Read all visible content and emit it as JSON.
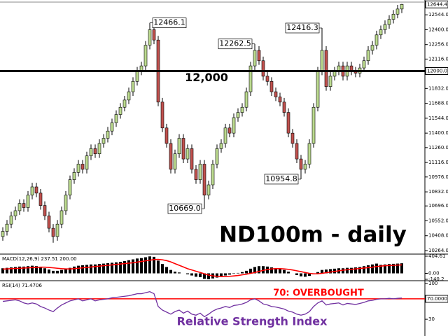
{
  "chart_data": [
    {
      "type": "candlestick",
      "title": "ND100m - daily",
      "up_color": "#bcdb8f",
      "down_color": "#c0504d",
      "open": [
        10400,
        10450,
        10520,
        10600,
        10650,
        10720,
        10680,
        10800,
        10880,
        10820,
        10700,
        10600,
        10480,
        10400,
        10520,
        10650,
        10800,
        10950,
        11020,
        11100,
        11050,
        11180,
        11250,
        11200,
        11300,
        11350,
        11420,
        11500,
        11580,
        11650,
        11720,
        11800,
        11900,
        12000,
        12050,
        12250,
        12400,
        12300,
        11700,
        11450,
        11300,
        11050,
        11200,
        11350,
        11150,
        11250,
        11050,
        10950,
        11100,
        10800,
        10900,
        11100,
        11250,
        11300,
        11450,
        11400,
        11550,
        11600,
        11650,
        11800,
        12050,
        12200,
        12100,
        11950,
        11900,
        11800,
        11750,
        11700,
        11600,
        11400,
        11300,
        11150,
        11050,
        11100,
        11300,
        11650,
        12000,
        12200,
        11850,
        11950,
        12000,
        12050,
        11950,
        12050,
        12000,
        11980,
        12030,
        12100,
        12200,
        12250,
        12350,
        12400,
        12450,
        12500,
        12550,
        12600
      ],
      "high": [
        10490,
        10560,
        10640,
        10690,
        10760,
        10760,
        10840,
        10920,
        10920,
        10860,
        10740,
        10640,
        10520,
        10560,
        10690,
        10840,
        10990,
        11060,
        11140,
        11140,
        11220,
        11290,
        11290,
        11340,
        11390,
        11460,
        11540,
        11620,
        11690,
        11760,
        11840,
        11940,
        12040,
        12090,
        12290,
        12466.1,
        12440,
        12340,
        11740,
        11490,
        11340,
        11240,
        11390,
        11390,
        11290,
        11290,
        11090,
        11140,
        11140,
        10940,
        11140,
        11290,
        11340,
        11490,
        11490,
        11590,
        11640,
        11690,
        11840,
        12090,
        12262.5,
        12240,
        12140,
        11990,
        11940,
        11840,
        11790,
        11740,
        11640,
        11440,
        11340,
        11190,
        11140,
        11340,
        11690,
        12040,
        12416.3,
        12240,
        11990,
        12040,
        12090,
        12090,
        12090,
        12090,
        12040,
        12070,
        12140,
        12240,
        12290,
        12390,
        12440,
        12490,
        12540,
        12590,
        12640,
        12650
      ],
      "low": [
        10360,
        10410,
        10480,
        10560,
        10610,
        10640,
        10640,
        10760,
        10780,
        10660,
        10560,
        10440,
        10340,
        10360,
        10480,
        10610,
        10760,
        10910,
        10980,
        11010,
        11010,
        11140,
        11160,
        11160,
        11260,
        11310,
        11380,
        11460,
        11540,
        11610,
        11680,
        11760,
        11860,
        11960,
        12010,
        12210,
        12260,
        11660,
        11410,
        11260,
        11010,
        11010,
        11160,
        11110,
        11110,
        11010,
        10910,
        10910,
        10669.0,
        10760,
        10860,
        11060,
        11210,
        11260,
        11360,
        11360,
        11510,
        11560,
        11610,
        11760,
        12010,
        12060,
        11910,
        11860,
        11760,
        11710,
        11660,
        11560,
        11360,
        11260,
        11110,
        10954.8,
        11010,
        11060,
        11260,
        11610,
        11960,
        11810,
        11810,
        11910,
        11960,
        11910,
        11910,
        11960,
        11940,
        11940,
        11990,
        12060,
        12160,
        12210,
        12310,
        12360,
        12410,
        12460,
        12510,
        12560
      ],
      "close": [
        10450,
        10520,
        10600,
        10650,
        10720,
        10680,
        10800,
        10880,
        10820,
        10700,
        10600,
        10480,
        10400,
        10520,
        10650,
        10800,
        10950,
        11020,
        11100,
        11050,
        11180,
        11250,
        11200,
        11300,
        11350,
        11420,
        11500,
        11580,
        11650,
        11720,
        11800,
        11900,
        12000,
        12050,
        12250,
        12400,
        12300,
        11700,
        11450,
        11300,
        11050,
        11200,
        11350,
        11150,
        11250,
        11050,
        10950,
        11100,
        10800,
        10900,
        11100,
        11250,
        11300,
        11450,
        11400,
        11550,
        11600,
        11650,
        11800,
        12050,
        12200,
        12100,
        11950,
        11900,
        11800,
        11750,
        11700,
        11600,
        11400,
        11300,
        11150,
        11050,
        11100,
        11300,
        11650,
        12000,
        12200,
        11850,
        11950,
        12000,
        12050,
        11950,
        12050,
        12000,
        11980,
        12030,
        12100,
        12200,
        12250,
        12350,
        12400,
        12450,
        12500,
        12550,
        12600,
        12644.4
      ],
      "ylim": [
        10237,
        12660
      ],
      "yticks": [
        {
          "value": 10264,
          "label": "10264.0"
        },
        {
          "value": 10408,
          "label": "10408.0"
        },
        {
          "value": 10552,
          "label": "10552.0"
        },
        {
          "value": 10696,
          "label": "10696.0"
        },
        {
          "value": 10832,
          "label": "10832.0"
        },
        {
          "value": 10976,
          "label": "10976.0"
        },
        {
          "value": 11116,
          "label": "11116.0"
        },
        {
          "value": 11260,
          "label": "11260.0"
        },
        {
          "value": 11400,
          "label": "11400.0"
        },
        {
          "value": 11544,
          "label": "11544.0"
        },
        {
          "value": 11688,
          "label": "11688.0"
        },
        {
          "value": 11832,
          "label": "11832.0"
        },
        {
          "value": 12116,
          "label": "12116.0"
        },
        {
          "value": 12256,
          "label": "12256.0"
        },
        {
          "value": 12400,
          "label": "12400.0"
        },
        {
          "value": 12544,
          "label": "12544.0"
        }
      ],
      "level": {
        "value": 12000,
        "label": "12,000",
        "axis_label": "12000.0"
      },
      "extreme_labels": [
        {
          "value": 12466.1,
          "label": "12466.1"
        },
        {
          "value": 12262.5,
          "label": "12262.5"
        },
        {
          "value": 12416.3,
          "label": "12416.3"
        },
        {
          "value": 10954.8,
          "label": "10954.8"
        },
        {
          "value": 10669.0,
          "label": "10669.0"
        }
      ]
    },
    {
      "type": "macd",
      "title": "MACD(12,26,9) 237.51 200.00",
      "signal_color": "#ff0000",
      "hist_color": "#000000",
      "macd": [
        120,
        130,
        140,
        150,
        160,
        160,
        170,
        180,
        170,
        150,
        120,
        90,
        60,
        60,
        80,
        100,
        130,
        160,
        180,
        190,
        200,
        210,
        210,
        220,
        230,
        240,
        250,
        260,
        270,
        290,
        310,
        330,
        350,
        360,
        380,
        400,
        390,
        300,
        220,
        150,
        80,
        40,
        20,
        0,
        -20,
        -50,
        -80,
        -90,
        -130,
        -140,
        -120,
        -100,
        -80,
        -50,
        -30,
        -10,
        10,
        30,
        60,
        110,
        150,
        170,
        170,
        160,
        140,
        120,
        100,
        80,
        40,
        0,
        -40,
        -70,
        -80,
        -60,
        -20,
        30,
        80,
        90,
        100,
        110,
        120,
        120,
        130,
        130,
        140,
        150,
        170,
        190,
        210,
        230,
        200,
        210,
        220,
        225,
        230,
        237.51
      ],
      "signal": [
        100,
        105,
        110,
        115,
        120,
        125,
        130,
        135,
        140,
        145,
        145,
        140,
        130,
        120,
        110,
        105,
        105,
        110,
        120,
        130,
        140,
        150,
        160,
        170,
        180,
        190,
        200,
        210,
        220,
        230,
        240,
        250,
        265,
        280,
        295,
        310,
        325,
        330,
        320,
        300,
        270,
        230,
        190,
        150,
        110,
        80,
        50,
        20,
        -10,
        -40,
        -60,
        -70,
        -75,
        -75,
        -70,
        -60,
        -50,
        -35,
        -20,
        0,
        20,
        45,
        70,
        90,
        105,
        110,
        110,
        105,
        95,
        80,
        60,
        40,
        20,
        0,
        -10,
        -10,
        0,
        15,
        30,
        45,
        60,
        75,
        85,
        95,
        105,
        115,
        125,
        135,
        145,
        160,
        170,
        180,
        185,
        190,
        195,
        200
      ],
      "ylim": [
        -140.2,
        404.61
      ],
      "yticks": [
        {
          "value": 404.61,
          "label": "404.61"
        },
        {
          "value": 0,
          "label": "0.00"
        },
        {
          "value": -140.2,
          "label": "-140.2"
        }
      ]
    },
    {
      "type": "rsi",
      "title": "RSI(14) 71.4706",
      "color": "#7030a0",
      "values": [
        65,
        66,
        67,
        68,
        66,
        62,
        60,
        62,
        60,
        55,
        52,
        48,
        45,
        52,
        58,
        62,
        66,
        68,
        70,
        66,
        68,
        70,
        66,
        68,
        69,
        70,
        72,
        73,
        74,
        75,
        76,
        78,
        80,
        80,
        82,
        84,
        80,
        55,
        48,
        44,
        40,
        45,
        48,
        42,
        46,
        40,
        38,
        42,
        35,
        40,
        46,
        50,
        52,
        55,
        53,
        57,
        58,
        60,
        63,
        68,
        70,
        66,
        60,
        58,
        55,
        54,
        52,
        50,
        46,
        44,
        40,
        38,
        40,
        45,
        55,
        62,
        66,
        58,
        60,
        61,
        62,
        58,
        61,
        60,
        59,
        61,
        63,
        66,
        67,
        69,
        70,
        70,
        71,
        70,
        71,
        71.4706
      ],
      "ylim": [
        0,
        100
      ],
      "yticks": [
        100,
        30
      ],
      "level": {
        "value": 70,
        "label": "70.0000",
        "text": "70: OVERBOUGHT",
        "color": "#ff0000"
      },
      "annotation": "Relative Strength Index",
      "annotation_color": "#7030a0"
    }
  ]
}
